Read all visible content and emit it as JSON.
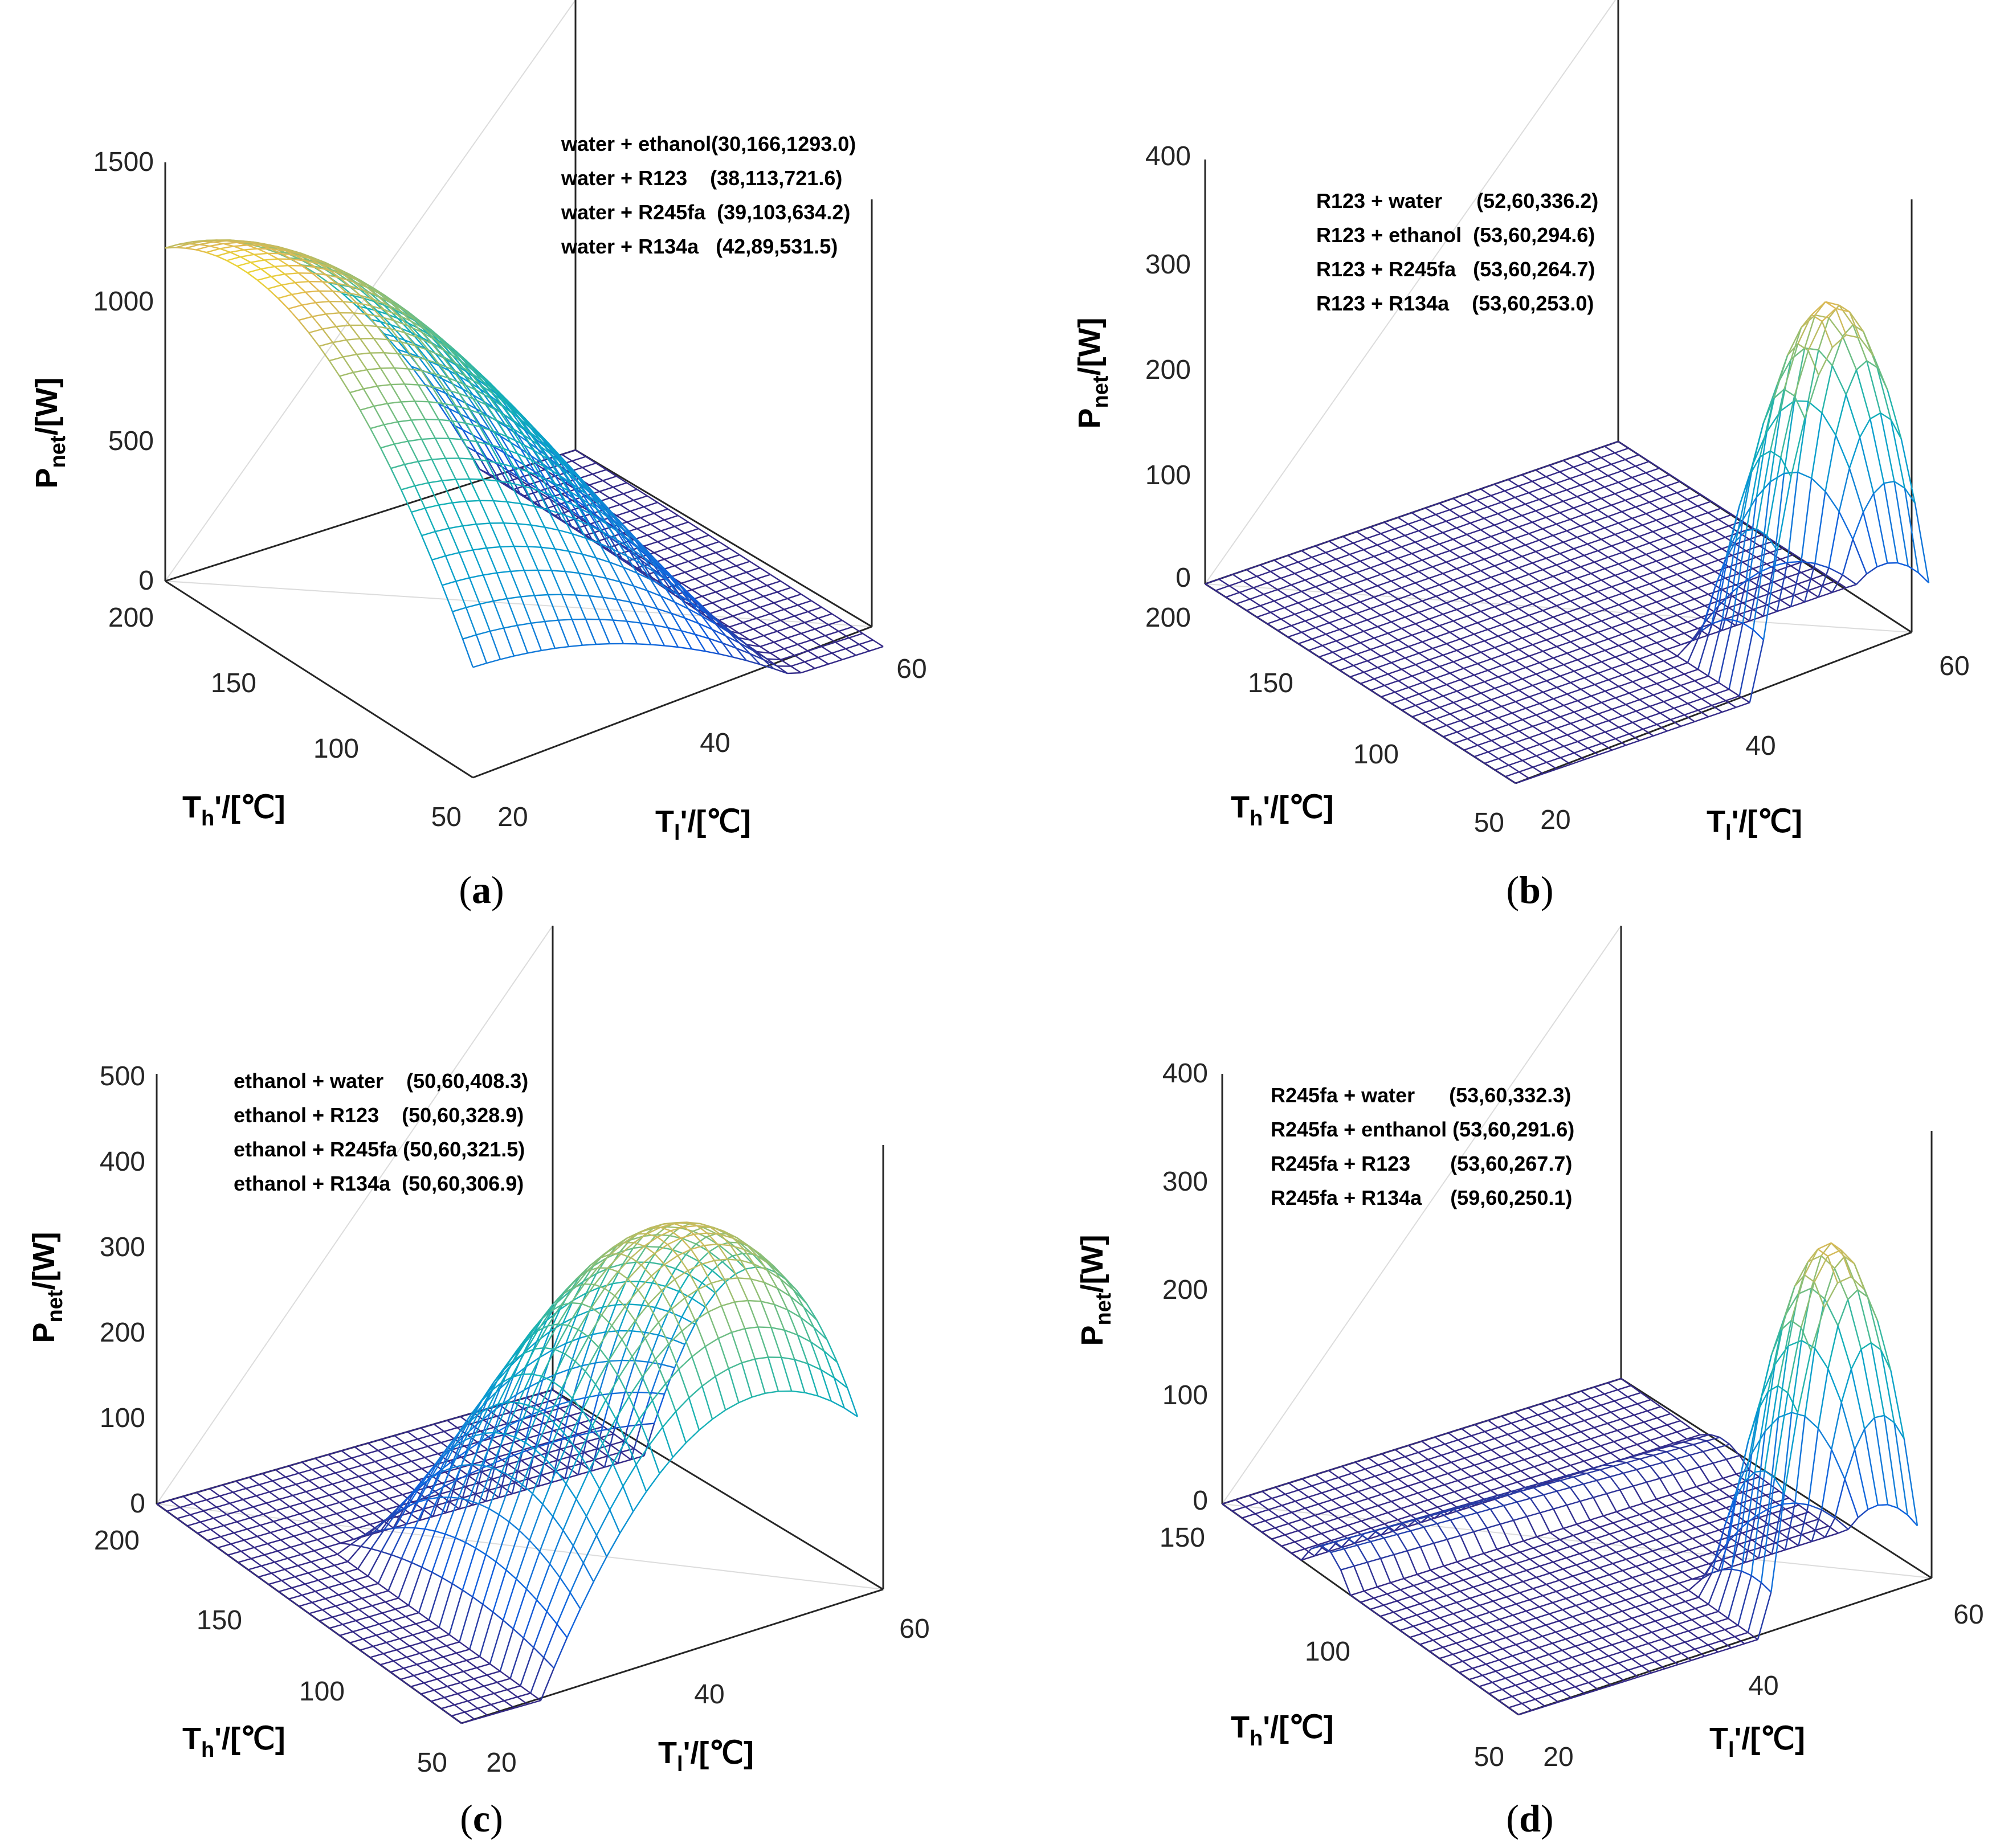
{
  "figure": {
    "panels": [
      {
        "id": "a",
        "caption": "a",
        "z_max_label": "1500",
        "z_ticks": [
          "0",
          "500",
          "1000",
          "1500"
        ],
        "th_ticks": [
          "50",
          "100",
          "150",
          "200"
        ],
        "tl_ticks": [
          "20",
          "40",
          "60"
        ],
        "annotations": [
          "water + ethanol(30,166,1293.0)",
          "water + R123    (38,113,721.6)",
          "water + R245fa  (39,103,634.2)",
          "water + R134a   (42,89,531.5)"
        ]
      },
      {
        "id": "b",
        "caption": "b",
        "z_ticks": [
          "0",
          "100",
          "200",
          "300",
          "400"
        ],
        "th_ticks": [
          "50",
          "100",
          "150",
          "200"
        ],
        "tl_ticks": [
          "20",
          "40",
          "60"
        ],
        "annotations": [
          "R123 + water      (52,60,336.2)",
          "R123 + ethanol  (53,60,294.6)",
          "R123 + R245fa   (53,60,264.7)",
          "R123 + R134a    (53,60,253.0)"
        ]
      },
      {
        "id": "c",
        "caption": "c",
        "z_ticks": [
          "0",
          "100",
          "200",
          "300",
          "400",
          "500"
        ],
        "th_ticks": [
          "50",
          "100",
          "150",
          "200"
        ],
        "tl_ticks": [
          "20",
          "40",
          "60"
        ],
        "annotations": [
          "ethanol + water    (50,60,408.3)",
          "ethanol + R123    (50,60,328.9)",
          "ethanol + R245fa (50,60,321.5)",
          "ethanol + R134a  (50,60,306.9)"
        ]
      },
      {
        "id": "d",
        "caption": "d",
        "z_ticks": [
          "0",
          "100",
          "200",
          "300",
          "400"
        ],
        "th_ticks": [
          "50",
          "100",
          "150"
        ],
        "tl_ticks": [
          "20",
          "40",
          "60"
        ],
        "annotations": [
          "R245fa + water      (53,60,332.3)",
          "R245fa + enthanol (53,60,291.6)",
          "R245fa + R123       (53,60,267.7)",
          "R245fa + R134a     (59,60,250.1)"
        ]
      }
    ],
    "axis_labels": {
      "z_main": "P",
      "z_sub": "net",
      "z_unit": "/[W]",
      "th_main": "T",
      "th_sub": "h",
      "th_unit": "'/[℃]",
      "tl_main": "T",
      "tl_sub": "l",
      "tl_unit": "'/[℃]"
    }
  },
  "chart_data": [
    {
      "type": "surface",
      "panel": "a",
      "title": "",
      "xlabel": "Tl'/[℃]",
      "ylabel": "Th'/[℃]",
      "zlabel": "Pnet/[W]",
      "xlim": [
        20,
        60
      ],
      "ylim": [
        50,
        200
      ],
      "zlim": [
        0,
        1500
      ],
      "peaks": [
        {
          "name": "water + ethanol",
          "tl": 30,
          "th": 166,
          "p": 1293.0
        },
        {
          "name": "water + R123",
          "tl": 38,
          "th": 113,
          "p": 721.6
        },
        {
          "name": "water + R245fa",
          "tl": 39,
          "th": 103,
          "p": 634.2
        },
        {
          "name": "water + R134a",
          "tl": 42,
          "th": 89,
          "p": 531.5
        }
      ]
    },
    {
      "type": "surface",
      "panel": "b",
      "title": "",
      "xlabel": "Tl'/[℃]",
      "ylabel": "Th'/[℃]",
      "zlabel": "Pnet/[W]",
      "xlim": [
        20,
        60
      ],
      "ylim": [
        50,
        200
      ],
      "zlim": [
        0,
        400
      ],
      "peaks": [
        {
          "name": "R123 + water",
          "tl": 52,
          "th": 60,
          "p": 336.2
        },
        {
          "name": "R123 + ethanol",
          "tl": 53,
          "th": 60,
          "p": 294.6
        },
        {
          "name": "R123 + R245fa",
          "tl": 53,
          "th": 60,
          "p": 264.7
        },
        {
          "name": "R123 + R134a",
          "tl": 53,
          "th": 60,
          "p": 253.0
        }
      ]
    },
    {
      "type": "surface",
      "panel": "c",
      "title": "",
      "xlabel": "Tl'/[℃]",
      "ylabel": "Th'/[℃]",
      "zlabel": "Pnet/[W]",
      "xlim": [
        20,
        60
      ],
      "ylim": [
        50,
        200
      ],
      "zlim": [
        0,
        500
      ],
      "peaks": [
        {
          "name": "ethanol + water",
          "tl": 50,
          "th": 60,
          "p": 408.3
        },
        {
          "name": "ethanol + R123",
          "tl": 50,
          "th": 60,
          "p": 328.9
        },
        {
          "name": "ethanol + R245fa",
          "tl": 50,
          "th": 60,
          "p": 321.5
        },
        {
          "name": "ethanol + R134a",
          "tl": 50,
          "th": 60,
          "p": 306.9
        }
      ]
    },
    {
      "type": "surface",
      "panel": "d",
      "title": "",
      "xlabel": "Tl'/[℃]",
      "ylabel": "Th'/[℃]",
      "zlabel": "Pnet/[W]",
      "xlim": [
        20,
        60
      ],
      "ylim": [
        50,
        150
      ],
      "zlim": [
        0,
        400
      ],
      "peaks": [
        {
          "name": "R245fa + water",
          "tl": 53,
          "th": 60,
          "p": 332.3
        },
        {
          "name": "R245fa + enthanol",
          "tl": 53,
          "th": 60,
          "p": 291.6
        },
        {
          "name": "R245fa + R123",
          "tl": 53,
          "th": 60,
          "p": 267.7
        },
        {
          "name": "R245fa + R134a",
          "tl": 59,
          "th": 60,
          "p": 250.1
        }
      ]
    }
  ]
}
